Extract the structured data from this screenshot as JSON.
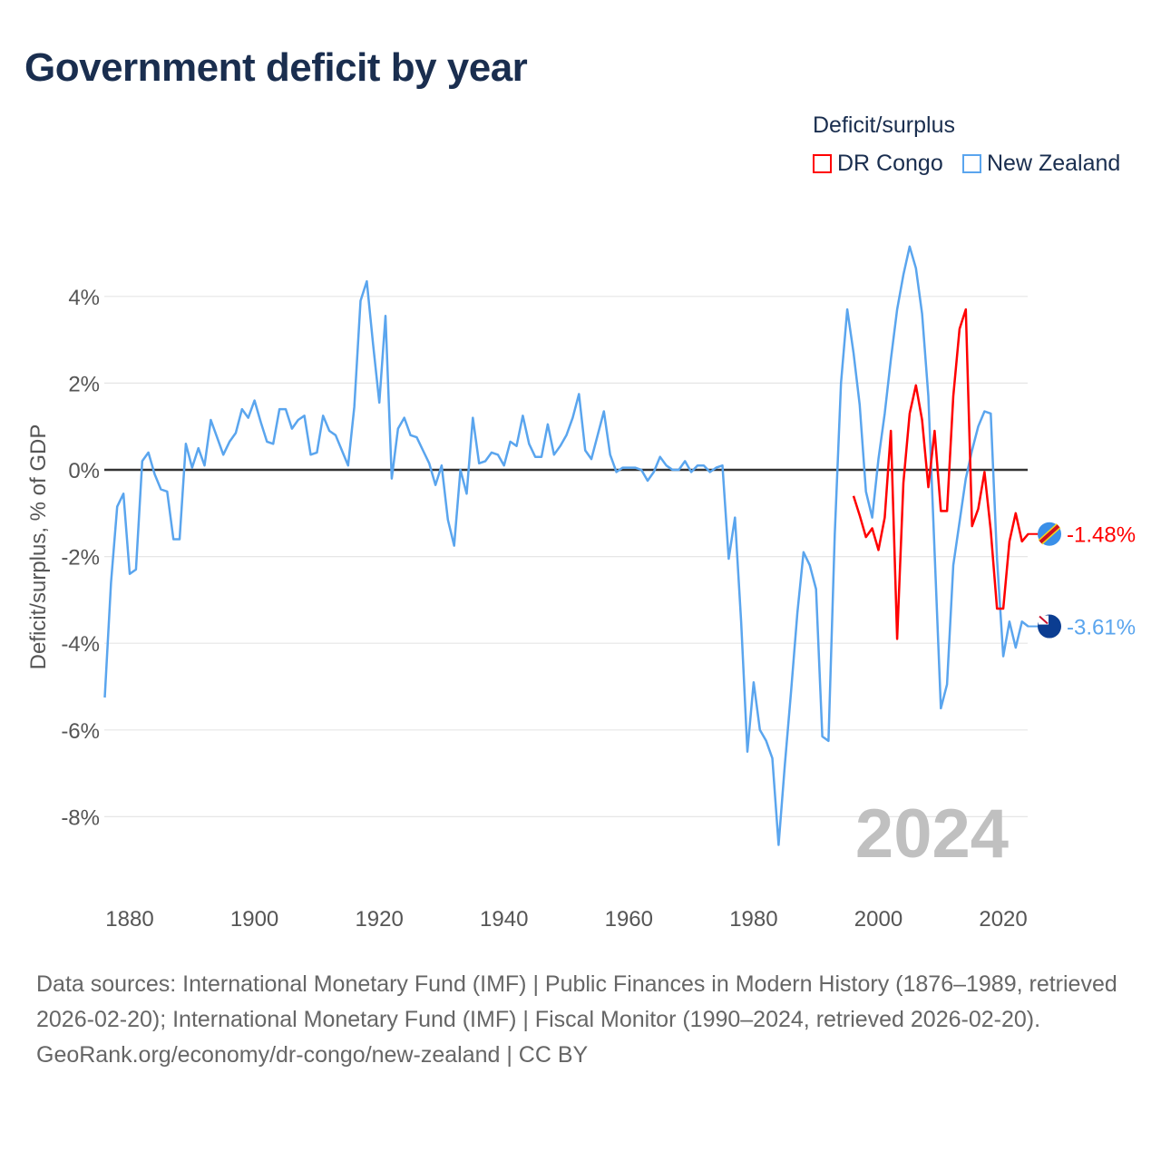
{
  "title": "Government deficit by year",
  "legend": {
    "title": "Deficit/surplus",
    "items": [
      {
        "name": "DR Congo",
        "color": "#ff0000"
      },
      {
        "name": "New Zealand",
        "color": "#5aa5ee"
      }
    ]
  },
  "footer": {
    "line1": "Data sources: International Monetary Fund (IMF) | Public Finances in Modern History (1876–1989, retrieved 2026-02-20); International Monetary Fund (IMF) | Fiscal Monitor (1990–2024, retrieved 2026-02-20).",
    "line2": "GeoRank.org/economy/dr-congo/new-zealand | CC BY"
  },
  "chart_data": {
    "type": "line",
    "title": "Government deficit by year",
    "ylabel": "Deficit/surplus, % of GDP",
    "xlabel": "",
    "year_watermark": "2024",
    "xlim": [
      1876,
      2024
    ],
    "ylim": [
      -9.5,
      5.5
    ],
    "x_ticks": [
      {
        "v": 1880,
        "label": "1880"
      },
      {
        "v": 1900,
        "label": "1900"
      },
      {
        "v": 1920,
        "label": "1920"
      },
      {
        "v": 1940,
        "label": "1940"
      },
      {
        "v": 1960,
        "label": "1960"
      },
      {
        "v": 1980,
        "label": "1980"
      },
      {
        "v": 2000,
        "label": "2000"
      },
      {
        "v": 2020,
        "label": "2020"
      }
    ],
    "y_ticks": [
      {
        "v": 4,
        "label": "4%"
      },
      {
        "v": 2,
        "label": "2%"
      },
      {
        "v": 0,
        "label": "0%"
      },
      {
        "v": -2,
        "label": "-2%"
      },
      {
        "v": -4,
        "label": "-4%"
      },
      {
        "v": -6,
        "label": "-6%"
      },
      {
        "v": -8,
        "label": "-8%"
      }
    ],
    "series": [
      {
        "name": "New Zealand",
        "color": "#5aa5ee",
        "start_year": 1876,
        "end_label": "-3.61%",
        "values": [
          -5.25,
          -2.6,
          -0.85,
          -0.55,
          -2.4,
          -2.3,
          0.2,
          0.4,
          -0.1,
          -0.45,
          -0.5,
          -1.6,
          -1.6,
          0.6,
          0.05,
          0.5,
          0.1,
          1.15,
          0.75,
          0.35,
          0.65,
          0.85,
          1.4,
          1.2,
          1.6,
          1.1,
          0.65,
          0.6,
          1.4,
          1.4,
          0.95,
          1.15,
          1.25,
          0.35,
          0.4,
          1.25,
          0.9,
          0.8,
          0.45,
          0.1,
          1.45,
          3.9,
          4.35,
          2.9,
          1.55,
          3.55,
          -0.2,
          0.95,
          1.2,
          0.8,
          0.75,
          0.45,
          0.15,
          -0.35,
          0.1,
          -1.15,
          -1.75,
          0.0,
          -0.55,
          1.2,
          0.15,
          0.2,
          0.4,
          0.35,
          0.1,
          0.65,
          0.55,
          1.25,
          0.6,
          0.3,
          0.3,
          1.05,
          0.35,
          0.55,
          0.8,
          1.2,
          1.75,
          0.45,
          0.25,
          0.8,
          1.35,
          0.35,
          -0.05,
          0.05,
          0.05,
          0.05,
          0.0,
          -0.25,
          -0.05,
          0.3,
          0.1,
          0.0,
          0.0,
          0.2,
          -0.05,
          0.1,
          0.1,
          -0.05,
          0.05,
          0.1,
          -2.05,
          -1.1,
          -3.5,
          -6.5,
          -4.9,
          -6.0,
          -6.25,
          -6.65,
          -8.65,
          -6.8,
          -5.1,
          -3.3,
          -1.9,
          -2.2,
          -2.75,
          -6.15,
          -6.25,
          -1.5,
          2.0,
          3.7,
          2.7,
          1.5,
          -0.5,
          -1.1,
          0.25,
          1.3,
          2.55,
          3.7,
          4.5,
          5.15,
          4.65,
          3.6,
          1.7,
          -1.9,
          -5.5,
          -4.95,
          -2.2,
          -1.2,
          -0.2,
          0.45,
          1.0,
          1.35,
          1.3,
          -2.05,
          -4.3,
          -3.5,
          -4.1,
          -3.5,
          -3.61
        ]
      },
      {
        "name": "DR Congo",
        "color": "#ff0000",
        "start_year": 1996,
        "end_label": "-1.48%",
        "values": [
          -0.6,
          -1.05,
          -1.55,
          -1.35,
          -1.85,
          -1.1,
          0.9,
          -3.9,
          -0.3,
          1.3,
          1.95,
          1.15,
          -0.4,
          0.9,
          -0.95,
          -0.95,
          1.7,
          3.25,
          3.7,
          -1.3,
          -0.9,
          -0.05,
          -1.4,
          -3.2,
          -3.2,
          -1.65,
          -1.0,
          -1.65,
          -1.48
        ]
      }
    ]
  }
}
